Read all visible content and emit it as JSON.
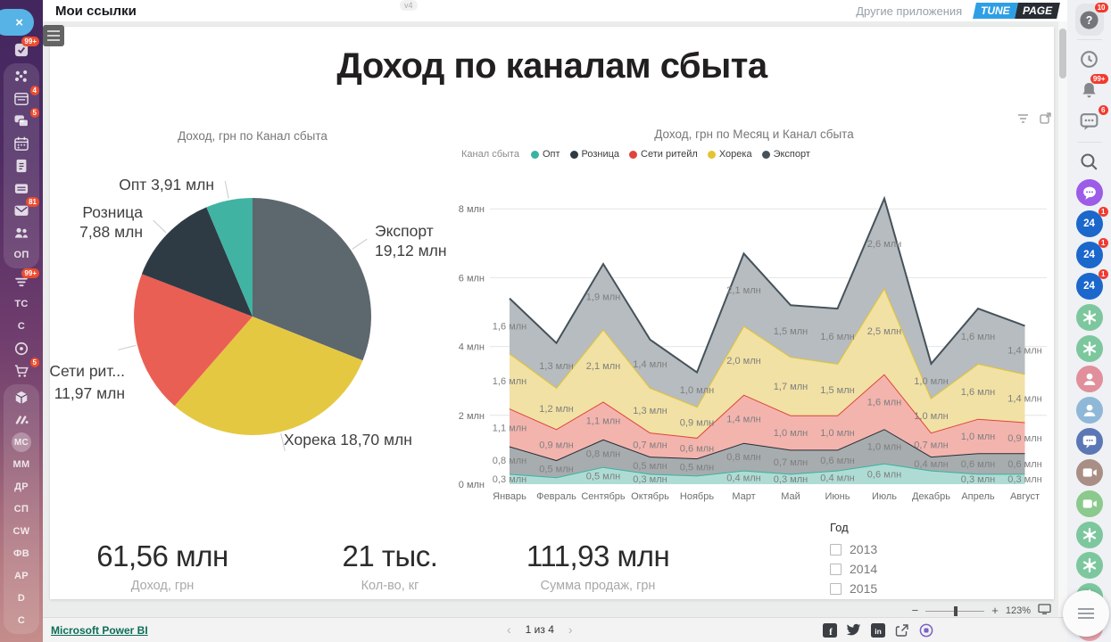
{
  "top_bar": {
    "title": "Мои ссылки",
    "version_badge": "v4",
    "other_apps": "Другие приложения",
    "logo": {
      "left": "TUNE",
      "right": "PAGE",
      "left_color": "#2f9fe5",
      "right_color": "#272d33"
    }
  },
  "left_sidebar": {
    "items": [
      {
        "name": "tasks",
        "icon": "checkbox",
        "badge": "99+"
      },
      {
        "name": "share",
        "icon": "share",
        "group": 1
      },
      {
        "name": "cards",
        "icon": "window",
        "badge": "4",
        "group": 1
      },
      {
        "name": "chats",
        "icon": "chat",
        "badge": "5",
        "group": 1
      },
      {
        "name": "calendar",
        "icon": "calendar",
        "group": 1
      },
      {
        "name": "notes",
        "icon": "document",
        "group": 1
      },
      {
        "name": "archive",
        "icon": "inbox",
        "group": 1
      },
      {
        "name": "mail",
        "icon": "envelope",
        "badge": "81",
        "group": 1
      },
      {
        "name": "contacts",
        "icon": "people",
        "group": 1
      },
      {
        "name": "op",
        "label": "ОП",
        "group": 1
      },
      {
        "name": "filter",
        "icon": "filter",
        "badge": "99+"
      },
      {
        "name": "tc",
        "label": "ТС"
      },
      {
        "name": "c-1",
        "label": "С"
      },
      {
        "name": "target",
        "icon": "target"
      },
      {
        "name": "cart",
        "icon": "cart",
        "badge": "5"
      },
      {
        "name": "box",
        "icon": "cube",
        "group": 2
      },
      {
        "name": "monday",
        "icon": "monday",
        "group": 2
      },
      {
        "name": "mc",
        "label": "МС",
        "avatar": true,
        "group": 2
      },
      {
        "name": "mm",
        "label": "ММ",
        "group": 2
      },
      {
        "name": "dr",
        "label": "ДР",
        "group": 2
      },
      {
        "name": "sp",
        "label": "СП",
        "group": 2
      },
      {
        "name": "cw",
        "label": "CW",
        "group": 2
      },
      {
        "name": "fv",
        "label": "ФВ",
        "group": 2
      },
      {
        "name": "ar",
        "label": "АР",
        "group": 2
      },
      {
        "name": "d",
        "label": "D",
        "group": 2
      },
      {
        "name": "c-2",
        "label": "С",
        "group": 2
      }
    ]
  },
  "right_sidebar": {
    "items": [
      {
        "name": "help",
        "icon": "question",
        "badge": "10",
        "boxed": true
      },
      {
        "name": "divider"
      },
      {
        "name": "history",
        "icon": "history"
      },
      {
        "name": "notifications",
        "icon": "bell",
        "badge": "99+"
      },
      {
        "name": "comments",
        "icon": "chat-square",
        "badge": "6"
      },
      {
        "name": "divider"
      },
      {
        "name": "search",
        "icon": "search"
      },
      {
        "name": "messenger",
        "icon": "chat-round",
        "bg": "#9d5ce8"
      },
      {
        "name": "bitrix24-1",
        "text": "24",
        "bg": "#1b67cc",
        "badge": "1"
      },
      {
        "name": "bitrix24-2",
        "text": "24",
        "bg": "#1b67cc",
        "badge": "1"
      },
      {
        "name": "bitrix24-3",
        "text": "24",
        "bg": "#1b67cc",
        "badge": "1"
      },
      {
        "name": "chatgpt-1",
        "icon": "gpt",
        "bg": "#7dc79e"
      },
      {
        "name": "chatgpt-2",
        "icon": "gpt",
        "bg": "#7dc79e"
      },
      {
        "name": "contact-pink",
        "icon": "person",
        "bg": "#e08f9b"
      },
      {
        "name": "contact-blue",
        "icon": "person",
        "bg": "#8fb8d8"
      },
      {
        "name": "team-chat",
        "icon": "chat-people",
        "bg": "#5c77b5"
      },
      {
        "name": "video-brown",
        "icon": "video",
        "bg": "#a98e85"
      },
      {
        "name": "video-green",
        "icon": "video",
        "bg": "#8bc98c"
      },
      {
        "name": "chatgpt-3",
        "icon": "gpt",
        "bg": "#7dc79e"
      },
      {
        "name": "chatgpt-4",
        "icon": "gpt",
        "bg": "#7dc79e"
      },
      {
        "name": "chatgpt-5",
        "icon": "gpt",
        "bg": "#7dc79e"
      },
      {
        "name": "contact-pink-2",
        "icon": "person",
        "bg": "#e8a3ad"
      }
    ]
  },
  "report": {
    "title": "Доход по каналам сбыта",
    "kpis": [
      {
        "value": "61,56 млн",
        "label": "Доход, грн"
      },
      {
        "value": "21 тыс.",
        "label": "Кол-во, кг"
      },
      {
        "value": "111,93 млн",
        "label": "Сумма продаж, грн"
      }
    ],
    "slicer": {
      "label": "Год",
      "options": [
        "2013",
        "2014",
        "2015"
      ],
      "checked": [
        false,
        false,
        false
      ]
    }
  },
  "chart_data": [
    {
      "type": "pie",
      "title": "Доход, грн по Канал сбыта",
      "unit": "млн",
      "direction": "clockwise",
      "start_angle_deg": 0,
      "slices": [
        {
          "name": "Экспорт",
          "value": 19.12,
          "label_lines": [
            "Экспорт",
            "19,12 млн"
          ],
          "color": "#5d676e"
        },
        {
          "name": "Хорека",
          "value": 18.7,
          "label_lines": [
            "Хорека 18,70 млн"
          ],
          "color": "#e5c842"
        },
        {
          "name": "Сети ритейл",
          "value": 11.97,
          "label_lines": [
            "Сети рит...",
            "11,97 млн"
          ],
          "color": "#ea5f54"
        },
        {
          "name": "Розница",
          "value": 7.88,
          "label_lines": [
            "Розница",
            "7,88 млн"
          ],
          "color": "#2f3b44"
        },
        {
          "name": "Опт",
          "value": 3.91,
          "label_lines": [
            "Опт 3,91 млн"
          ],
          "color": "#41b3a3"
        }
      ]
    },
    {
      "type": "area",
      "stacked": true,
      "title": "Доход, грн по Месяц и Канал сбыта",
      "legend_title": "Канал сбыта",
      "legend_position": "top-left",
      "grid": true,
      "ylim": [
        0,
        8
      ],
      "y_ticks": [
        "0 млн",
        "2 млн",
        "4 млн",
        "6 млн",
        "8 млн"
      ],
      "categories": [
        "Январь",
        "Февраль",
        "Сентябрь",
        "Октябрь",
        "Ноябрь",
        "Март",
        "Май",
        "Июнь",
        "Июль",
        "Декабрь",
        "Апрель",
        "Август"
      ],
      "series": [
        {
          "name": "Опт",
          "color": "#3bb2a1",
          "fill": "#aedcd4",
          "values": [
            0.3,
            0.2,
            0.5,
            0.3,
            0.25,
            0.4,
            0.3,
            0.4,
            0.6,
            0.4,
            0.3,
            0.3
          ],
          "labels": [
            "0,3 млн",
            null,
            "0,5 млн",
            "0,3 млн",
            null,
            "0,4 млн",
            "0,3 млн",
            "0,4 млн",
            "0,6 млн",
            null,
            "0,3 млн",
            "0,3 млн"
          ]
        },
        {
          "name": "Розница",
          "color": "#252e35",
          "fill": "#a7acaf",
          "values": [
            0.8,
            0.5,
            0.8,
            0.5,
            0.5,
            0.8,
            0.7,
            0.6,
            1.0,
            0.4,
            0.6,
            0.6
          ],
          "labels": [
            "0,8 млн",
            "0,5 млн",
            "0,8 млн",
            "0,5 млн",
            "0,5 млн",
            "0,8 млн",
            "0,7 млн",
            "0,6 млн",
            "1,0 млн",
            "0,4 млн",
            "0,6 млн",
            "0,6 млн"
          ]
        },
        {
          "name": "Сети ритейл",
          "color": "#e0453a",
          "fill": "#f3b4ae",
          "values": [
            1.1,
            0.9,
            1.1,
            0.7,
            0.6,
            1.4,
            1.0,
            1.0,
            1.6,
            0.7,
            1.0,
            0.9
          ],
          "labels": [
            "1,1 млн",
            "0,9 млн",
            "1,1 млн",
            "0,7 млн",
            "0,6 млн",
            "1,4 млн",
            "1,0 млн",
            "1,0 млн",
            "1,6 млн",
            "0,7 млн",
            "1,0 млн",
            "0,9 млн"
          ]
        },
        {
          "name": "Хорека",
          "color": "#e3c430",
          "fill": "#f1e1a4",
          "values": [
            1.6,
            1.2,
            2.1,
            1.3,
            0.9,
            2.0,
            1.7,
            1.5,
            2.5,
            1.0,
            1.6,
            1.4
          ],
          "labels": [
            "1,6 млн",
            "1,2 млн",
            "2,1 млн",
            "1,3 млн",
            "0,9 млн",
            "2,0 млн",
            "1,7 млн",
            "1,5 млн",
            "2,5 млн",
            "1,0 млн",
            "1,6 млн",
            "1,4 млн"
          ]
        },
        {
          "name": "Экспорт",
          "color": "#45525b",
          "fill": "#b6bcbf",
          "values": [
            1.6,
            1.3,
            1.9,
            1.4,
            1.0,
            2.1,
            1.5,
            1.6,
            2.6,
            1.0,
            1.6,
            1.4
          ],
          "labels": [
            "1,6 млн",
            "1,3 млн",
            "1,9 млн",
            "1,4 млн",
            "1,0 млн",
            "2,1 млн",
            "1,5 млн",
            "1,6 млн",
            "2,6 млн",
            "1,0 млн",
            "1,6 млн",
            "1,4 млн"
          ]
        }
      ]
    }
  ],
  "zoom_control": {
    "minus": "−",
    "plus": "+",
    "value": "123%"
  },
  "footer": {
    "brand": "Microsoft Power BI",
    "pager": {
      "prev": "‹",
      "text": "1 из 4",
      "next": "›"
    }
  }
}
